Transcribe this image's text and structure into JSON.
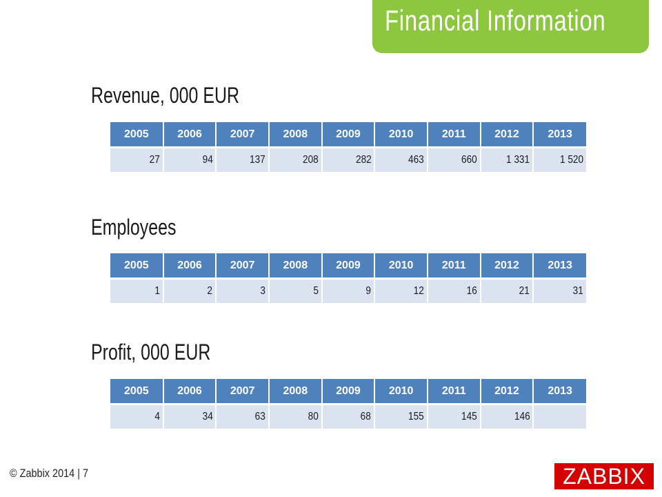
{
  "header": {
    "title": "Financial Information"
  },
  "sections": [
    {
      "heading": "Revenue,  000 EUR",
      "years": [
        "2005",
        "2006",
        "2007",
        "2008",
        "2009",
        "2010",
        "2011",
        "2012",
        "2013"
      ],
      "values": [
        "27",
        "94",
        "137",
        "208",
        "282",
        "463",
        "660",
        "1 331",
        "1 520"
      ]
    },
    {
      "heading": "Employees",
      "years": [
        "2005",
        "2006",
        "2007",
        "2008",
        "2009",
        "2010",
        "2011",
        "2012",
        "2013"
      ],
      "values": [
        "1",
        "2",
        "3",
        "5",
        "9",
        "12",
        "16",
        "21",
        "31"
      ]
    },
    {
      "heading": "Profit,  000 EUR",
      "years": [
        "2005",
        "2006",
        "2007",
        "2008",
        "2009",
        "2010",
        "2011",
        "2012",
        "2013"
      ],
      "values": [
        "4",
        "34",
        "63",
        "80",
        "68",
        "155",
        "145",
        "146",
        ""
      ]
    }
  ],
  "footer": {
    "copyright": "© Zabbix 2014 | 7",
    "logo": "ZABBIX"
  },
  "colors": {
    "accent": "#8dc63f",
    "table_header": "#4f81bd",
    "table_row": "#dbe3f1",
    "logo": "#d40000"
  }
}
